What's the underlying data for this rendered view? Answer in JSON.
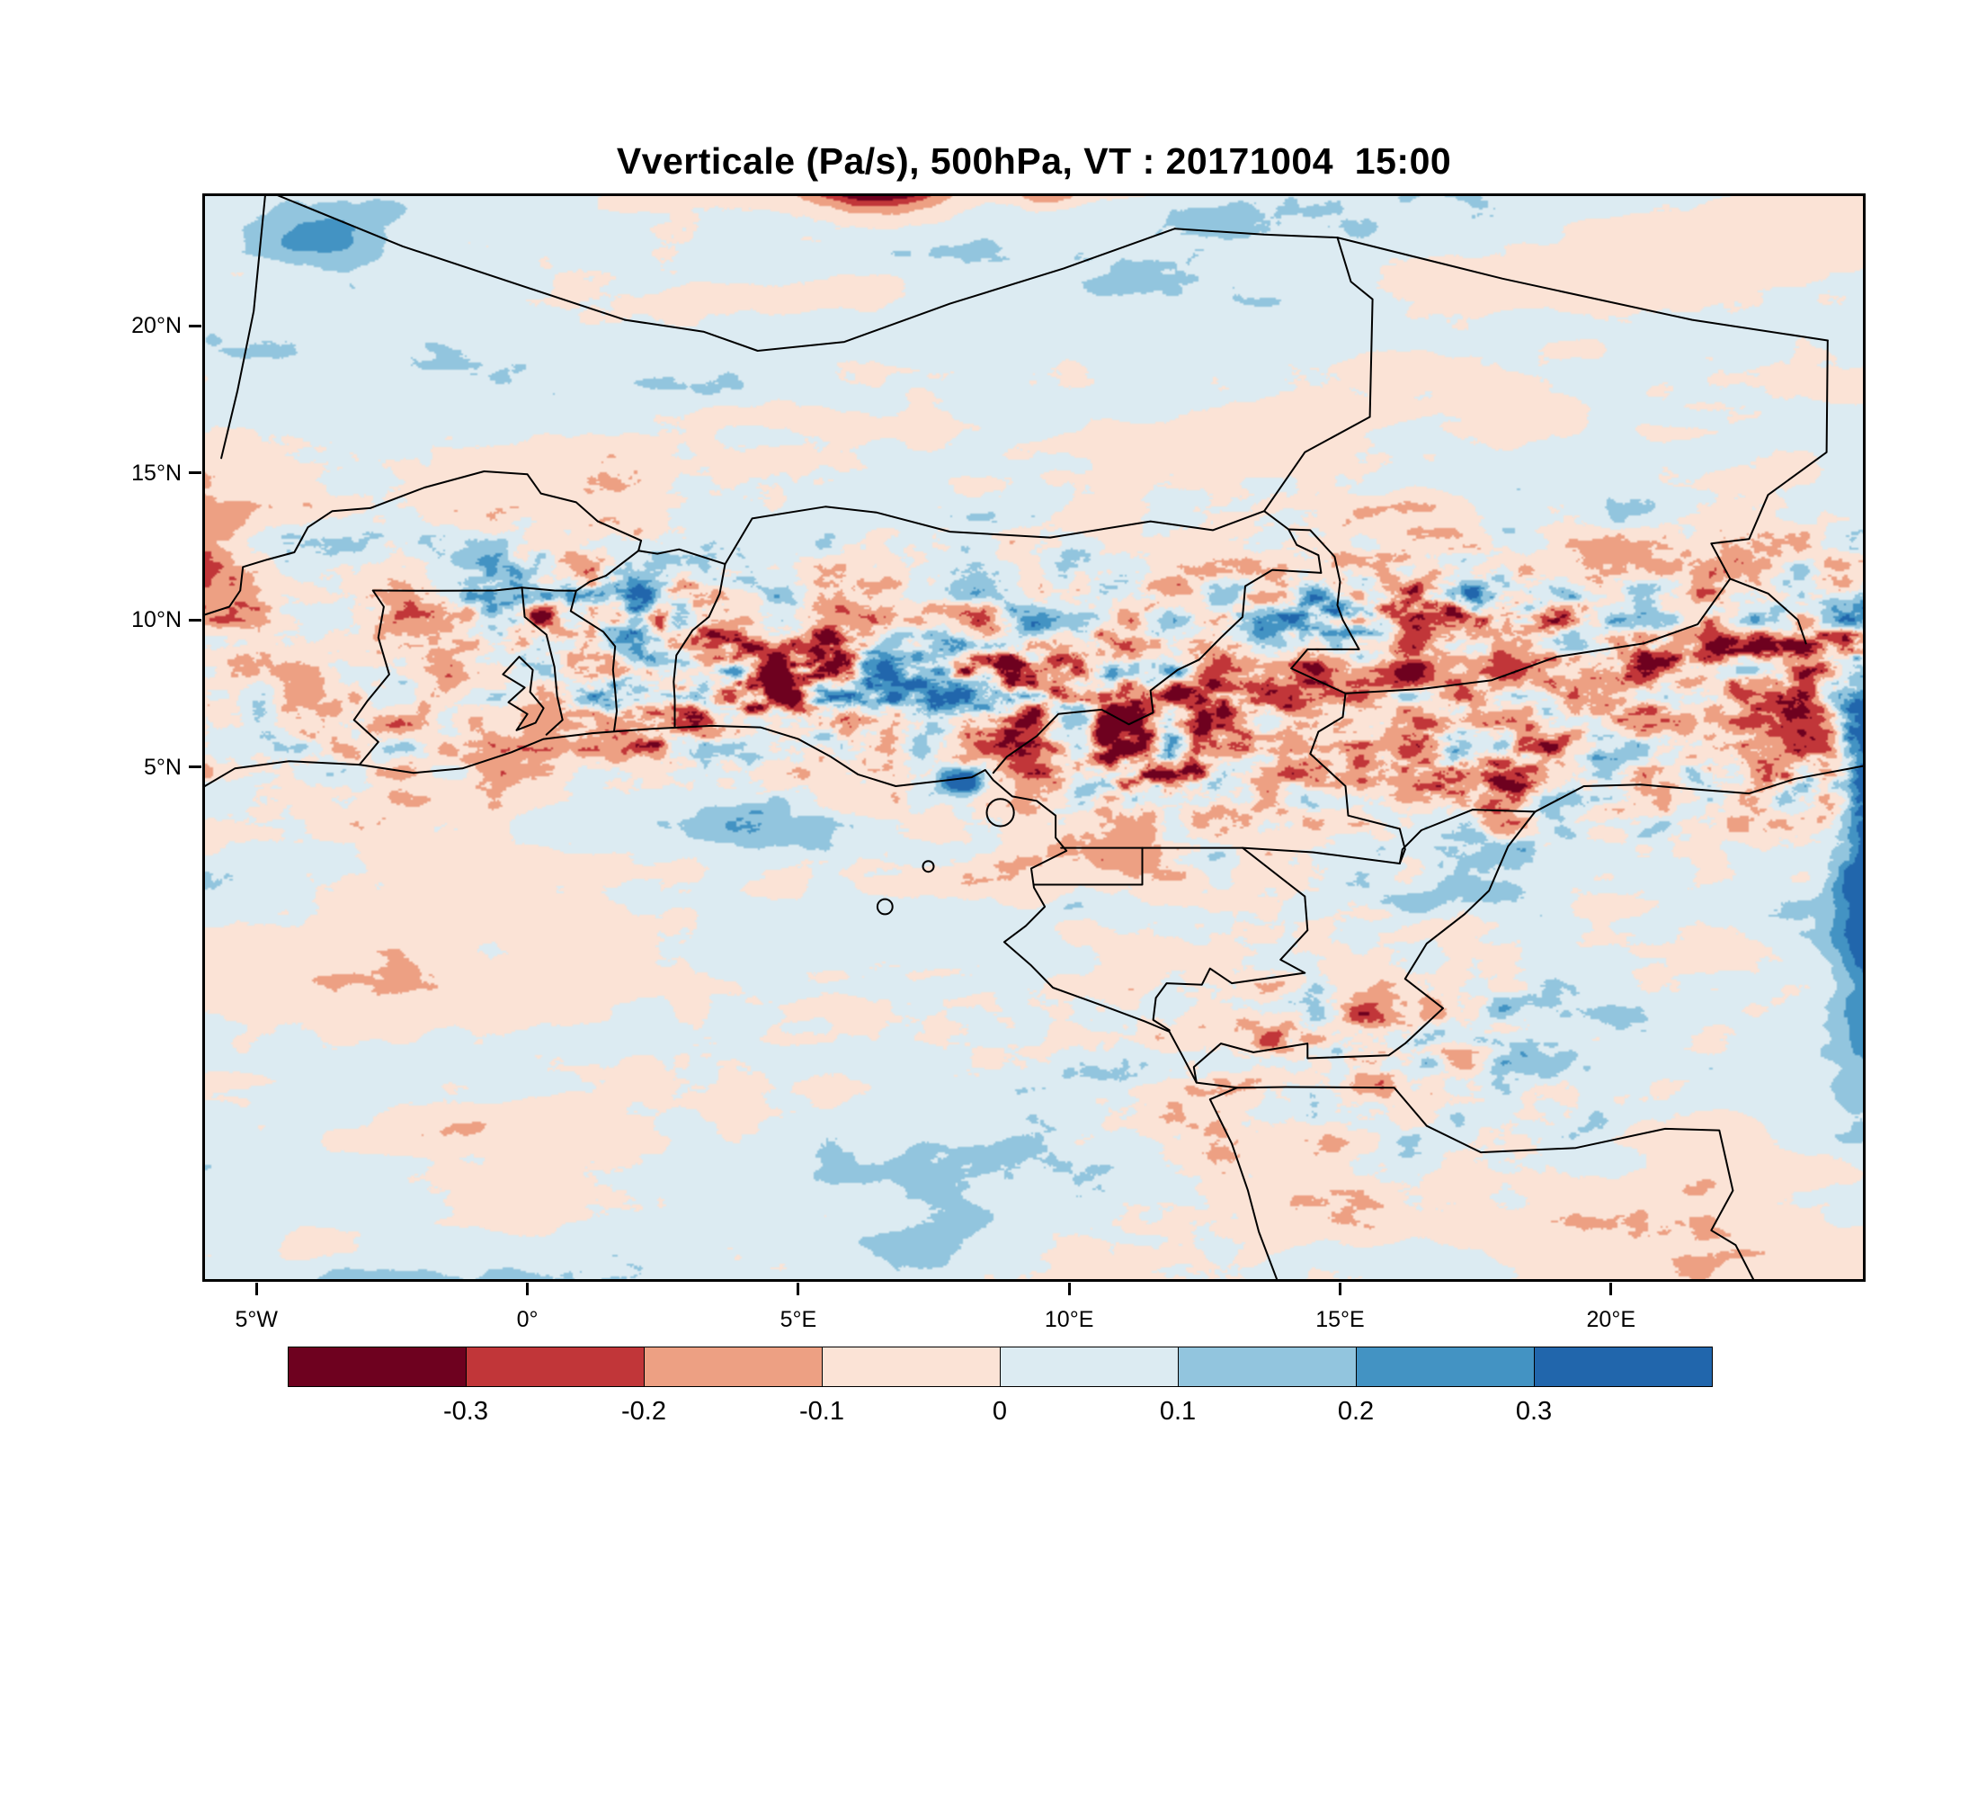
{
  "title": "Vverticale (Pa/s), 500hPa, VT : 20171004  15:00",
  "chart_data": {
    "type": "heatmap",
    "title": "Vverticale (Pa/s), 500hPa, VT : 20171004  15:00",
    "variable": "Vverticale",
    "units": "Pa/s",
    "level": "500hPa",
    "valid_time": "20171004 15:00",
    "x_axis": {
      "tick_labels": [
        "5°W",
        "0°",
        "5°E",
        "10°E",
        "15°E",
        "20°E"
      ],
      "tick_lons": [
        -5,
        0,
        5,
        10,
        15,
        20
      ]
    },
    "y_axis": {
      "tick_labels": [
        "20°N",
        "15°N",
        "10°N",
        "5°N"
      ],
      "tick_lats": [
        20,
        15,
        10,
        5
      ]
    },
    "extent": {
      "lon_min": -6,
      "lon_max": 24.7,
      "lat_min": -12.5,
      "lat_max": 24.5
    },
    "grid": false,
    "legend_position": "bottom",
    "colorbar": {
      "tick_labels": [
        "-0.3",
        "-0.2",
        "-0.1",
        "0",
        "0.1",
        "0.2",
        "0.3"
      ],
      "levels": [
        -0.3,
        -0.2,
        -0.1,
        0,
        0.1,
        0.2,
        0.3
      ],
      "colors": [
        "#6e011f",
        "#c13639",
        "#eda083",
        "#fbe3d6",
        "#dcebf2",
        "#92c5de",
        "#4393c3",
        "#2166ac"
      ]
    },
    "features": [
      {
        "lon": 6.4,
        "lat": 24.9,
        "slon": 1.2,
        "slat": 0.8,
        "dv": -0.55
      },
      {
        "lon": 9.6,
        "lat": 24.5,
        "slon": 0.6,
        "slat": 0.5,
        "dv": -0.22
      },
      {
        "lon": -3.8,
        "lat": 23.0,
        "slon": 1.4,
        "slat": 1.1,
        "dv": 0.26
      },
      {
        "lon": -6.2,
        "lat": 11.8,
        "slon": 1.0,
        "slat": 2.6,
        "dv": -0.3
      },
      {
        "lon": 24.9,
        "lat": 3.5,
        "slon": 0.75,
        "slat": 7.0,
        "dv": 0.6
      },
      {
        "lon": 8.05,
        "lat": 4.55,
        "slon": 0.38,
        "slat": 0.42,
        "dv": 0.5
      },
      {
        "lon": 4.5,
        "lat": 2.8,
        "slon": 1.5,
        "slat": 0.9,
        "dv": 0.22
      },
      {
        "lon": 11.5,
        "lat": 6.2,
        "slon": 2.2,
        "slat": 1.8,
        "dv": -0.15
      },
      {
        "lon": 17.0,
        "lat": 8.6,
        "slon": 2.6,
        "slat": 2.2,
        "dv": -0.12
      },
      {
        "lon": 22.5,
        "lat": 6.5,
        "slon": 2.0,
        "slat": 2.8,
        "dv": -0.1
      }
    ],
    "geo": {
      "coastline": [
        [
          -6,
          4.3
        ],
        [
          -5.4,
          4.95
        ],
        [
          -4.4,
          5.2
        ],
        [
          -3.1,
          5.08
        ],
        [
          -2.1,
          4.8
        ],
        [
          -1.2,
          4.95
        ],
        [
          -0.3,
          5.5
        ],
        [
          0.3,
          5.95
        ],
        [
          1.2,
          6.15
        ],
        [
          2.3,
          6.3
        ],
        [
          3.4,
          6.4
        ],
        [
          4.3,
          6.35
        ],
        [
          5.0,
          5.95
        ],
        [
          5.6,
          5.35
        ],
        [
          6.1,
          4.75
        ],
        [
          6.8,
          4.35
        ],
        [
          7.5,
          4.5
        ],
        [
          8.2,
          4.65
        ],
        [
          8.45,
          4.9
        ],
        [
          8.6,
          4.55
        ],
        [
          8.95,
          4.0
        ],
        [
          9.4,
          3.85
        ],
        [
          9.75,
          3.35
        ],
        [
          9.75,
          2.6
        ],
        [
          9.95,
          2.15
        ],
        [
          9.3,
          1.55
        ],
        [
          9.35,
          0.9
        ],
        [
          9.55,
          0.25
        ],
        [
          9.2,
          -0.4
        ],
        [
          8.8,
          -0.95
        ],
        [
          9.3,
          -1.75
        ],
        [
          9.7,
          -2.5
        ],
        [
          10.6,
          -3.1
        ],
        [
          11.4,
          -3.65
        ],
        [
          11.85,
          -4.0
        ],
        [
          12.1,
          -4.85
        ],
        [
          12.35,
          -5.73
        ],
        [
          13.1,
          -5.9
        ],
        [
          12.6,
          -6.3
        ],
        [
          13.0,
          -7.8
        ],
        [
          13.3,
          -9.4
        ],
        [
          13.5,
          -10.8
        ],
        [
          13.85,
          -12.5
        ]
      ],
      "lake_volta": [
        [
          -0.2,
          6.25
        ],
        [
          0.0,
          6.8
        ],
        [
          -0.35,
          7.2
        ],
        [
          -0.05,
          7.7
        ],
        [
          -0.45,
          8.15
        ],
        [
          -0.15,
          8.75
        ],
        [
          0.1,
          8.3
        ],
        [
          0.05,
          7.55
        ],
        [
          0.3,
          7.0
        ],
        [
          0.15,
          6.5
        ],
        [
          -0.2,
          6.25
        ]
      ],
      "islands": [
        {
          "lon": 8.73,
          "lat": 3.45,
          "r": 0.25
        },
        {
          "lon": 7.4,
          "lat": 1.62,
          "r": 0.1
        },
        {
          "lon": 6.6,
          "lat": 0.25,
          "r": 0.14
        }
      ],
      "borders": [
        [
          [
            -5.65,
            15.5
          ],
          [
            -5.35,
            17.8
          ],
          [
            -5.05,
            20.5
          ],
          [
            -4.83,
            24.6
          ]
        ],
        [
          [
            -4.83,
            24.6
          ],
          [
            -2.3,
            22.7
          ],
          [
            1.8,
            20.2
          ]
        ],
        [
          [
            1.8,
            20.2
          ],
          [
            3.25,
            19.8
          ],
          [
            4.25,
            19.15
          ],
          [
            5.85,
            19.45
          ],
          [
            7.8,
            20.75
          ],
          [
            9.9,
            21.95
          ],
          [
            11.95,
            23.3
          ]
        ],
        [
          [
            11.95,
            23.3
          ],
          [
            13.6,
            23.1
          ],
          [
            14.95,
            23.0
          ]
        ],
        [
          [
            14.95,
            23.0
          ],
          [
            18.0,
            21.6
          ],
          [
            21.5,
            20.2
          ],
          [
            24.0,
            19.5
          ]
        ],
        [
          [
            24.0,
            19.5
          ],
          [
            23.98,
            15.7
          ],
          [
            22.9,
            14.25
          ],
          [
            22.55,
            12.75
          ],
          [
            21.85,
            12.6
          ],
          [
            22.2,
            11.4
          ],
          [
            22.9,
            10.9
          ],
          [
            23.45,
            10.0
          ],
          [
            23.6,
            9.2
          ]
        ],
        [
          [
            14.95,
            23.0
          ],
          [
            15.2,
            21.5
          ],
          [
            15.6,
            20.9
          ],
          [
            15.55,
            16.9
          ],
          [
            14.35,
            15.7
          ],
          [
            13.6,
            13.7
          ]
        ],
        [
          [
            -6,
            10.15
          ],
          [
            -5.5,
            10.45
          ],
          [
            -5.3,
            11.0
          ],
          [
            -5.25,
            11.8
          ],
          [
            -4.8,
            12.05
          ],
          [
            -4.3,
            12.3
          ],
          [
            -4.05,
            13.15
          ],
          [
            -3.6,
            13.7
          ],
          [
            -2.9,
            13.8
          ],
          [
            -1.9,
            14.5
          ],
          [
            -0.8,
            15.05
          ],
          [
            0.0,
            14.95
          ],
          [
            0.25,
            14.3
          ],
          [
            0.9,
            14.0
          ],
          [
            1.3,
            13.35
          ],
          [
            2.1,
            12.7
          ],
          [
            2.05,
            12.35
          ]
        ],
        [
          [
            2.05,
            12.35
          ],
          [
            2.4,
            12.25
          ],
          [
            2.8,
            12.4
          ],
          [
            3.65,
            11.9
          ]
        ],
        [
          [
            3.65,
            11.9
          ],
          [
            4.15,
            13.45
          ],
          [
            5.5,
            13.85
          ],
          [
            6.45,
            13.65
          ],
          [
            7.8,
            13.0
          ],
          [
            9.65,
            12.8
          ],
          [
            11.5,
            13.35
          ],
          [
            12.65,
            13.05
          ],
          [
            13.6,
            13.7
          ]
        ],
        [
          [
            -3.1,
            5.08
          ],
          [
            -2.75,
            5.85
          ],
          [
            -3.2,
            6.6
          ],
          [
            -2.95,
            7.25
          ],
          [
            -2.55,
            8.15
          ],
          [
            -2.75,
            9.4
          ],
          [
            -2.65,
            10.45
          ],
          [
            -2.85,
            11.0
          ]
        ],
        [
          [
            -2.85,
            11.0
          ],
          [
            -1.6,
            10.99
          ],
          [
            -0.6,
            11.0
          ],
          [
            -0.1,
            11.1
          ],
          [
            0.5,
            11.0
          ],
          [
            0.9,
            10.99
          ]
        ],
        [
          [
            0.35,
            6.1
          ],
          [
            0.65,
            6.6
          ],
          [
            0.55,
            7.4
          ],
          [
            0.5,
            8.4
          ],
          [
            0.35,
            9.5
          ],
          [
            -0.05,
            10.1
          ],
          [
            -0.1,
            11.1
          ]
        ],
        [
          [
            1.6,
            6.22
          ],
          [
            1.65,
            6.9
          ],
          [
            1.62,
            7.6
          ],
          [
            1.58,
            8.3
          ],
          [
            1.62,
            9.1
          ],
          [
            1.4,
            9.6
          ],
          [
            0.8,
            10.3
          ],
          [
            0.9,
            10.99
          ]
        ],
        [
          [
            2.72,
            6.37
          ],
          [
            2.72,
            7.3
          ],
          [
            2.7,
            7.9
          ],
          [
            2.75,
            8.8
          ],
          [
            3.05,
            9.65
          ],
          [
            3.35,
            10.1
          ],
          [
            3.55,
            10.9
          ],
          [
            3.65,
            11.9
          ]
        ],
        [
          [
            0.9,
            10.99
          ],
          [
            1.15,
            11.3
          ],
          [
            1.45,
            11.5
          ],
          [
            2.05,
            12.35
          ]
        ],
        [
          [
            8.6,
            4.8
          ],
          [
            8.85,
            5.35
          ],
          [
            9.4,
            6.05
          ],
          [
            9.8,
            6.8
          ],
          [
            10.6,
            6.95
          ],
          [
            11.1,
            6.45
          ],
          [
            11.55,
            6.85
          ],
          [
            11.5,
            7.6
          ],
          [
            12.0,
            8.3
          ],
          [
            12.4,
            8.65
          ],
          [
            12.8,
            9.4
          ],
          [
            13.2,
            10.1
          ],
          [
            13.25,
            11.15
          ],
          [
            13.75,
            11.7
          ],
          [
            14.65,
            11.6
          ],
          [
            14.6,
            12.2
          ],
          [
            14.2,
            12.55
          ],
          [
            14.05,
            13.08
          ],
          [
            13.6,
            13.7
          ]
        ],
        [
          [
            14.05,
            13.08
          ],
          [
            14.45,
            13.05
          ],
          [
            14.9,
            12.15
          ],
          [
            15.0,
            11.3
          ],
          [
            14.95,
            10.5
          ],
          [
            15.05,
            10.0
          ]
        ],
        [
          [
            15.05,
            10.0
          ],
          [
            15.35,
            9.0
          ],
          [
            14.4,
            9.0
          ],
          [
            14.1,
            8.35
          ],
          [
            15.1,
            7.5
          ],
          [
            16.5,
            7.65
          ],
          [
            17.8,
            7.95
          ],
          [
            19.0,
            8.75
          ],
          [
            20.6,
            9.2
          ],
          [
            21.6,
            9.85
          ],
          [
            22.2,
            11.4
          ]
        ],
        [
          [
            15.1,
            7.5
          ],
          [
            15.05,
            6.7
          ],
          [
            14.6,
            6.2
          ],
          [
            14.45,
            5.45
          ],
          [
            15.1,
            4.35
          ],
          [
            15.15,
            3.35
          ],
          [
            16.1,
            2.9
          ],
          [
            16.2,
            2.2
          ],
          [
            16.1,
            1.72
          ]
        ],
        [
          [
            9.85,
            2.25
          ],
          [
            11.35,
            2.25
          ],
          [
            11.35,
            1.0
          ],
          [
            9.35,
            1.0
          ]
        ],
        [
          [
            11.35,
            2.25
          ],
          [
            13.2,
            2.25
          ],
          [
            14.5,
            2.1
          ],
          [
            16.1,
            1.72
          ]
        ],
        [
          [
            16.1,
            1.72
          ],
          [
            16.15,
            2.2
          ],
          [
            16.5,
            2.85
          ],
          [
            17.45,
            3.55
          ],
          [
            18.6,
            3.48
          ]
        ],
        [
          [
            18.6,
            3.48
          ],
          [
            19.5,
            4.35
          ],
          [
            20.55,
            4.4
          ],
          [
            21.5,
            4.25
          ],
          [
            22.55,
            4.1
          ],
          [
            23.4,
            4.6
          ],
          [
            24.7,
            5.05
          ]
        ],
        [
          [
            18.6,
            3.48
          ],
          [
            18.1,
            2.3
          ],
          [
            17.75,
            0.8
          ],
          [
            17.3,
            0.0
          ],
          [
            16.6,
            -1.0
          ],
          [
            16.2,
            -2.2
          ],
          [
            16.9,
            -3.2
          ],
          [
            16.2,
            -4.4
          ],
          [
            15.9,
            -4.8
          ],
          [
            14.4,
            -4.9
          ],
          [
            14.4,
            -4.4
          ],
          [
            13.4,
            -4.7
          ],
          [
            12.8,
            -4.4
          ],
          [
            12.3,
            -5.2
          ],
          [
            12.35,
            -5.73
          ]
        ],
        [
          [
            13.2,
            2.25
          ],
          [
            14.35,
            0.6
          ],
          [
            14.4,
            -0.55
          ],
          [
            13.9,
            -1.55
          ],
          [
            14.35,
            -2.0
          ],
          [
            13.0,
            -2.35
          ],
          [
            12.6,
            -1.85
          ],
          [
            12.45,
            -2.4
          ],
          [
            11.8,
            -2.35
          ],
          [
            11.6,
            -2.85
          ],
          [
            11.55,
            -3.6
          ],
          [
            11.85,
            -3.95
          ]
        ],
        [
          [
            13.1,
            -5.9
          ],
          [
            14.0,
            -5.88
          ],
          [
            16.0,
            -5.9
          ],
          [
            16.6,
            -7.2
          ],
          [
            17.6,
            -8.1
          ],
          [
            19.35,
            -7.95
          ],
          [
            21.0,
            -7.3
          ],
          [
            22.0,
            -7.35
          ],
          [
            22.25,
            -9.4
          ],
          [
            21.85,
            -10.75
          ],
          [
            22.3,
            -11.25
          ],
          [
            22.65,
            -12.5
          ]
        ]
      ]
    }
  }
}
